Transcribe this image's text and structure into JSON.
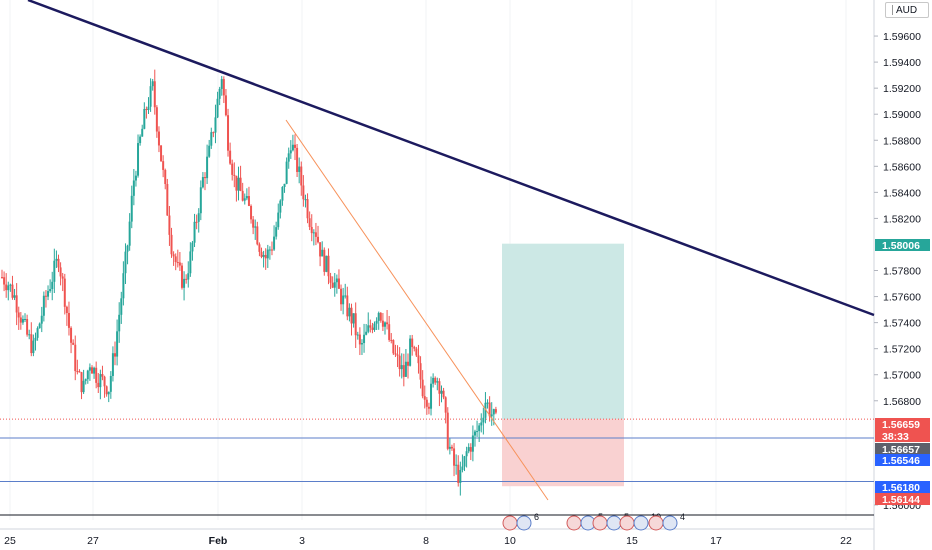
{
  "currency": "AUD",
  "price_axis": {
    "ticks": [
      "1.59600",
      "1.59400",
      "1.59200",
      "1.59000",
      "1.58800",
      "1.58600",
      "1.58400",
      "1.58200",
      "1.57800",
      "1.57600",
      "1.57400",
      "1.57200",
      "1.57000",
      "1.56800",
      "1.56000"
    ],
    "range": [
      1.559,
      1.598
    ]
  },
  "time_axis": {
    "labels": [
      "25",
      "27",
      "Feb",
      "3",
      "8",
      "10",
      "15",
      "17",
      "22"
    ]
  },
  "badges": [
    {
      "id": "target",
      "text": "1.58006",
      "price": 1.58006,
      "bg": "#26a69a",
      "fg": "#ffffff"
    },
    {
      "id": "entry",
      "text": "1.56659",
      "price": 1.56659,
      "bg": "#ef5350",
      "fg": "#ffffff"
    },
    {
      "id": "countdown",
      "text": "38:33",
      "price": 1.56602,
      "bg": "#ef5350",
      "fg": "#ffffff"
    },
    {
      "id": "level-1",
      "text": "1.56657",
      "price": 1.56545,
      "bg": "#5d606b",
      "fg": "#ffffff"
    },
    {
      "id": "level-2",
      "text": "1.56546",
      "price": 1.5647,
      "bg": "#2962ff",
      "fg": "#ffffff"
    },
    {
      "id": "level-3",
      "text": "1.56180",
      "price": 1.5618,
      "bg": "#2962ff",
      "fg": "#ffffff"
    },
    {
      "id": "stop",
      "text": "1.56144",
      "price": 1.5611,
      "bg": "#ef5350",
      "fg": "#ffffff"
    }
  ],
  "event_markers": [
    "6",
    "5",
    "5",
    "10",
    "4"
  ],
  "colors": {
    "up": "#26a69a",
    "down": "#ef5350",
    "trendline": "#1c1a5e",
    "channel": "#f7925b",
    "profit_zone": "#cce8e5",
    "loss_zone": "#f9d1d1",
    "hline": "#5b7ec9"
  },
  "chart_data": {
    "type": "candlestick",
    "symbol_currency": "AUD",
    "x_labels": [
      "25",
      "27",
      "Feb",
      "3",
      "8",
      "10",
      "15",
      "17",
      "22"
    ],
    "ylim": [
      1.559,
      1.598
    ],
    "close_path": [
      1.5775,
      1.577,
      1.576,
      1.5745,
      1.573,
      1.572,
      1.574,
      1.576,
      1.5775,
      1.579,
      1.576,
      1.5725,
      1.57,
      1.569,
      1.571,
      1.57,
      1.5695,
      1.569,
      1.572,
      1.576,
      1.58,
      1.585,
      1.588,
      1.5905,
      1.592,
      1.588,
      1.584,
      1.58,
      1.578,
      1.577,
      1.579,
      1.582,
      1.585,
      1.587,
      1.59,
      1.593,
      1.588,
      1.585,
      1.584,
      1.583,
      1.582,
      1.58,
      1.579,
      1.58,
      1.582,
      1.585,
      1.588,
      1.586,
      1.584,
      1.582,
      1.581,
      1.579,
      1.578,
      1.577,
      1.576,
      1.575,
      1.574,
      1.572,
      1.573,
      1.574,
      1.575,
      1.574,
      1.572,
      1.571,
      1.57,
      1.572,
      1.571,
      1.569,
      1.568,
      1.57,
      1.569,
      1.565,
      1.563,
      1.562,
      1.564,
      1.565,
      1.566,
      1.568,
      1.567,
      1.566
    ],
    "trendlines": [
      {
        "name": "",
        "from": {
          "x": "26",
          "y": 1.599
        },
        "to": {
          "x": "23",
          "y": 1.5747
        }
      },
      {
        "name": "",
        "from": {
          "x": "2",
          "y": 1.5898
        },
        "to": {
          "x": "11",
          "y": 1.5603
        }
      }
    ],
    "long_position": {
      "entry": 1.56659,
      "target": 1.58006,
      "stop": 1.56144
    },
    "horizontal_levels": [
      1.56659,
      1.56546,
      1.5618
    ]
  }
}
